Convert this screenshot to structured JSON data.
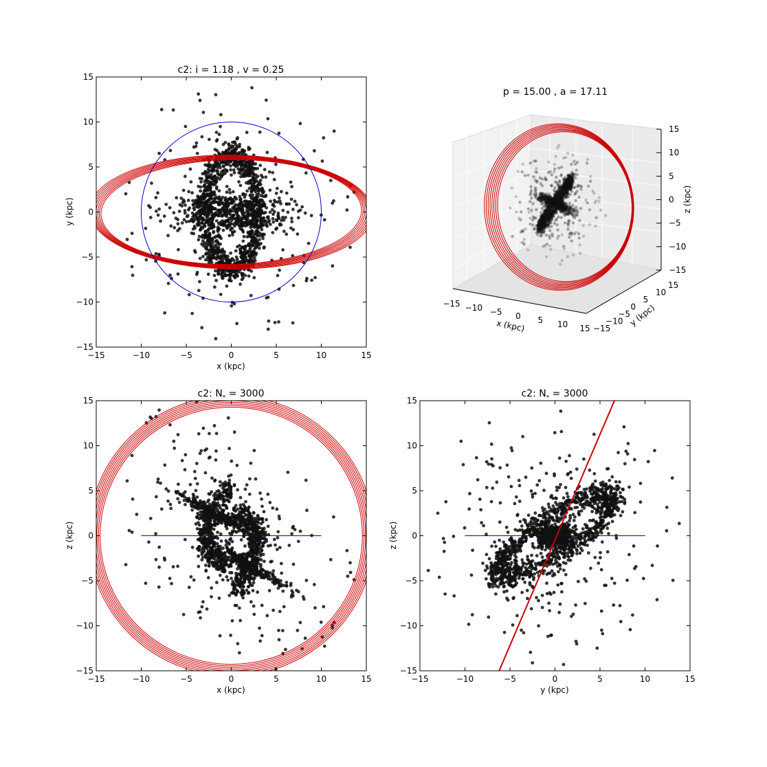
{
  "chart_data": [
    {
      "type": "scatter",
      "title": "c2: i = 1.18 , v = 0.25",
      "xlabel": "x (kpc)",
      "ylabel": "y (kpc)",
      "xlim": [
        -15,
        15
      ],
      "ylim": [
        -15,
        15
      ],
      "xticks": [
        -15,
        -10,
        -5,
        0,
        5,
        10,
        15
      ],
      "yticks": [
        -15,
        -10,
        -5,
        0,
        5,
        10,
        15
      ],
      "grid": false,
      "series": [
        {
          "kind": "points",
          "color": "#000000"
        },
        {
          "kind": "ring",
          "color": "#cc0000",
          "cx": 0,
          "cy": 0,
          "rx": 15.2,
          "ry": 6.1
        },
        {
          "kind": "circle",
          "color": "#0000cc",
          "cx": 0,
          "cy": 0,
          "r": 10
        }
      ]
    },
    {
      "type": "scatter",
      "title": "p = 15.00 , a = 17.11",
      "xlabel": "x (kpc)",
      "ylabel": "y (kpc)",
      "zlabel": "z (kpc)",
      "xlim": [
        -15,
        15
      ],
      "ylim": [
        -15,
        15
      ],
      "zlim": [
        -15,
        15
      ],
      "xticks": [
        -15,
        -10,
        -5,
        0,
        5,
        10,
        15
      ],
      "yticks": [
        -15,
        -10,
        -5,
        0,
        5,
        10,
        15
      ],
      "zticks": [
        -15,
        -10,
        -5,
        0,
        5,
        10,
        15
      ],
      "projection": "3d"
    },
    {
      "type": "scatter",
      "title_prefix": "c2: N",
      "title_sub": "*",
      "title_suffix": " =  3000",
      "xlabel": "x (kpc)",
      "ylabel": "z (kpc)",
      "xlim": [
        -15,
        15
      ],
      "ylim": [
        -15,
        15
      ],
      "xticks": [
        -15,
        -10,
        -5,
        0,
        5,
        10,
        15
      ],
      "yticks": [
        -15,
        -10,
        -5,
        0,
        5,
        10,
        15
      ],
      "series": [
        {
          "kind": "points",
          "color": "#000000"
        },
        {
          "kind": "ring",
          "color": "#cc0000",
          "cx": 0,
          "cy": 0,
          "rx": 15.3,
          "ry": 15.0
        },
        {
          "kind": "line",
          "color": "#0000cc",
          "x": [
            -10,
            10
          ],
          "y": [
            0,
            0
          ]
        }
      ]
    },
    {
      "type": "scatter",
      "title_prefix": "c2: N",
      "title_sub": "*",
      "title_suffix": " =  3000",
      "xlabel": "y (kpc)",
      "ylabel": "z (kpc)",
      "xlim": [
        -15,
        15
      ],
      "ylim": [
        -15,
        15
      ],
      "xticks": [
        -15,
        -10,
        -5,
        0,
        5,
        10,
        15
      ],
      "yticks": [
        -15,
        -10,
        -5,
        0,
        5,
        10,
        15
      ],
      "series": [
        {
          "kind": "points",
          "color": "#000000"
        },
        {
          "kind": "line",
          "color": "#cc0000",
          "x": [
            -6.2,
            6.6
          ],
          "y": [
            -15,
            15
          ]
        },
        {
          "kind": "line",
          "color": "#0000cc",
          "x": [
            -10,
            10
          ],
          "y": [
            0,
            0
          ]
        }
      ]
    }
  ]
}
